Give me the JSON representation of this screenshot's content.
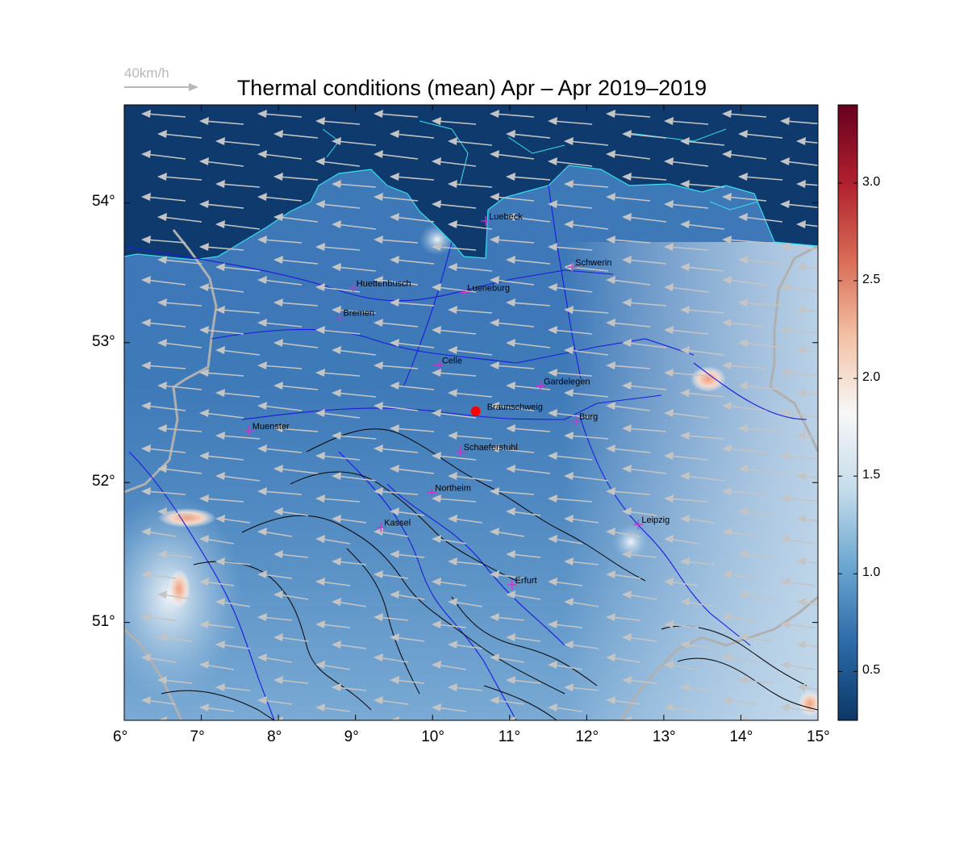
{
  "title": "Thermal conditions (mean) Apr – Apr  2019–2019",
  "wind_scale": {
    "label": "40km/h",
    "color": "#b8b8b8"
  },
  "map": {
    "lon_range": [
      6,
      15
    ],
    "lat_range": [
      50.3,
      54.7
    ],
    "x_ticks": [
      {
        "value": 6,
        "label": "6°"
      },
      {
        "value": 7,
        "label": "7°"
      },
      {
        "value": 8,
        "label": "8°"
      },
      {
        "value": 9,
        "label": "9°"
      },
      {
        "value": 10,
        "label": "10°"
      },
      {
        "value": 11,
        "label": "11°"
      },
      {
        "value": 12,
        "label": "12°"
      },
      {
        "value": 13,
        "label": "13°"
      },
      {
        "value": 14,
        "label": "14°"
      },
      {
        "value": 15,
        "label": "15°"
      }
    ],
    "y_ticks": [
      {
        "value": 54,
        "label": "54°"
      },
      {
        "value": 53,
        "label": "53°"
      },
      {
        "value": 52,
        "label": "52°"
      },
      {
        "value": 51,
        "label": "51°"
      }
    ],
    "sea_color": "#0f3a6e",
    "land_color": "#3f79b8",
    "coast_color": "#35e0f0",
    "river_color": "#1a1adf",
    "border_color": "#b0b0b0",
    "contour_color": "#000000",
    "arrow_color": "#c0c0c0",
    "city_marker_color": "#cc33cc",
    "highlight_color": "#ff0000"
  },
  "cities": [
    {
      "name": "Luebeck",
      "lon": 10.69,
      "lat": 53.87
    },
    {
      "name": "Schwerin",
      "lon": 11.81,
      "lat": 53.54
    },
    {
      "name": "Huettenbusch",
      "lon": 8.97,
      "lat": 53.39
    },
    {
      "name": "Lueneburg",
      "lon": 10.41,
      "lat": 53.36
    },
    {
      "name": "Bremen",
      "lon": 8.8,
      "lat": 53.18
    },
    {
      "name": "Celle",
      "lon": 10.08,
      "lat": 52.84
    },
    {
      "name": "Gardelegen",
      "lon": 11.4,
      "lat": 52.69
    },
    {
      "name": "Braunschweig",
      "lon": 10.56,
      "lat": 52.51,
      "highlight": true
    },
    {
      "name": "Burg",
      "lon": 11.86,
      "lat": 52.44
    },
    {
      "name": "Muenster",
      "lon": 7.62,
      "lat": 52.37
    },
    {
      "name": "Schaeferstuhl",
      "lon": 10.36,
      "lat": 52.22
    },
    {
      "name": "Northeim",
      "lon": 9.99,
      "lat": 51.93
    },
    {
      "name": "Kassel",
      "lon": 9.33,
      "lat": 51.68
    },
    {
      "name": "Leipzig",
      "lon": 12.67,
      "lat": 51.7
    },
    {
      "name": "Erfurt",
      "lon": 11.03,
      "lat": 51.27
    }
  ],
  "colorbar": {
    "min": 0.25,
    "max": 3.4,
    "ticks": [
      {
        "value": 0.5,
        "label": "0.5"
      },
      {
        "value": 1.0,
        "label": "1.0"
      },
      {
        "value": 1.5,
        "label": "1.5"
      },
      {
        "value": 2.0,
        "label": "2.0"
      },
      {
        "value": 2.5,
        "label": "2.5"
      },
      {
        "value": 3.0,
        "label": "3.0"
      }
    ],
    "stops": [
      "#0b3766",
      "#2c6aa8",
      "#6aa6d0",
      "#c5dcea",
      "#f7f7f7",
      "#f3c1a4",
      "#d86a54",
      "#b0202e",
      "#67001f"
    ]
  }
}
